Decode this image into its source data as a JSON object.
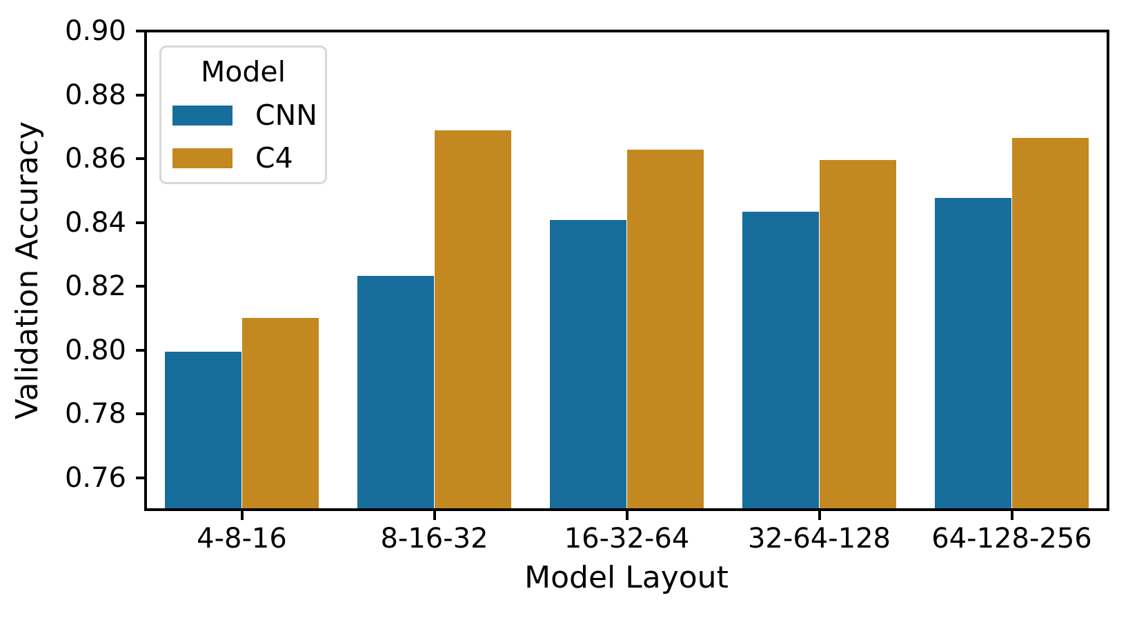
{
  "chart_data": {
    "type": "bar",
    "title": "",
    "xlabel": "Model Layout",
    "ylabel": "Validation Accuracy",
    "categories": [
      "4-8-16",
      "8-16-32",
      "16-32-64",
      "32-64-128",
      "64-128-256"
    ],
    "series": [
      {
        "name": "CNN",
        "color": "#176D9C",
        "values": [
          0.7995,
          0.8232,
          0.8408,
          0.8434,
          0.8478
        ]
      },
      {
        "name": "C4",
        "color": "#C38820",
        "values": [
          0.8101,
          0.8688,
          0.8629,
          0.8597,
          0.8666
        ]
      }
    ],
    "ylim": [
      0.75,
      0.9
    ],
    "yticks": [
      0.76,
      0.78,
      0.8,
      0.82,
      0.84,
      0.86,
      0.88,
      0.9
    ],
    "ytick_decimals": 2,
    "grid": false,
    "legend": {
      "title": "Model",
      "position": "upper-left"
    },
    "colors": {
      "axis": "#000000",
      "text": "#000000",
      "legend_border": "#d8d8d8",
      "background": "#ffffff"
    },
    "bar_group_fraction": 0.8
  }
}
